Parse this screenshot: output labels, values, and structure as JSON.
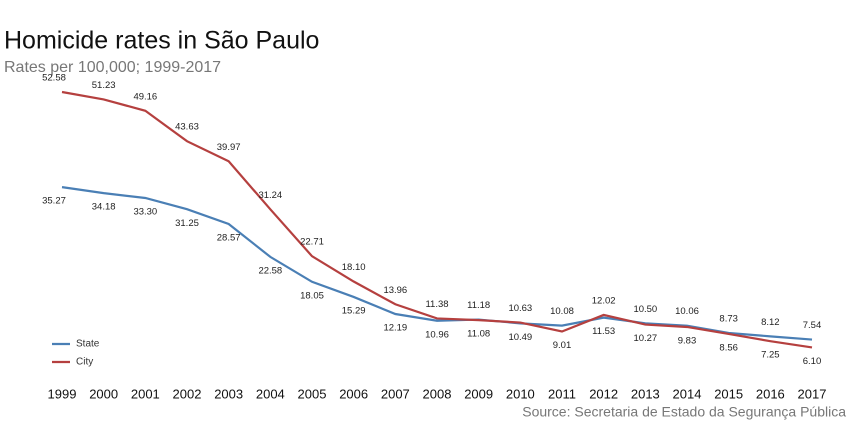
{
  "chart_data": {
    "type": "line",
    "title": "Homicide rates in São Paulo",
    "subtitle": "Rates per 100,000; 1999-2017",
    "source": "Source: Secretaria de Estado da Segurança Pública",
    "categories": [
      "1999",
      "2000",
      "2001",
      "2002",
      "2003",
      "2004",
      "2005",
      "2006",
      "2007",
      "2008",
      "2009",
      "2010",
      "2011",
      "2012",
      "2013",
      "2014",
      "2015",
      "2016",
      "2017"
    ],
    "series": [
      {
        "name": "State",
        "color": "#4a7fb5",
        "values": [
          35.27,
          34.18,
          33.3,
          31.25,
          28.57,
          22.58,
          18.05,
          15.29,
          12.19,
          10.96,
          11.18,
          10.49,
          10.08,
          11.53,
          10.5,
          10.06,
          8.73,
          8.12,
          7.54
        ],
        "value_labels": [
          "35.27",
          "34.18",
          "33.30",
          "31.25",
          "28.57",
          "22.58",
          "18.05",
          "15.29",
          "12.19",
          "10.96",
          "11.18",
          "10.49",
          "10.08",
          "11.53",
          "10.50",
          "10.06",
          "8.73",
          "8.12",
          "7.54"
        ]
      },
      {
        "name": "City",
        "color": "#b5403f",
        "values": [
          52.58,
          51.23,
          49.16,
          43.63,
          39.97,
          31.24,
          22.71,
          18.1,
          13.96,
          11.38,
          11.08,
          10.63,
          9.01,
          12.02,
          10.27,
          9.83,
          8.56,
          7.25,
          6.1
        ],
        "value_labels": [
          "52.58",
          "51.23",
          "49.16",
          "43.63",
          "39.97",
          "31.24",
          "22.71",
          "18.10",
          "13.96",
          "11.38",
          "11.08",
          "10.63",
          "9.01",
          "12.02",
          "10.27",
          "9.83",
          "8.56",
          "7.25",
          "6.10"
        ]
      }
    ]
  }
}
